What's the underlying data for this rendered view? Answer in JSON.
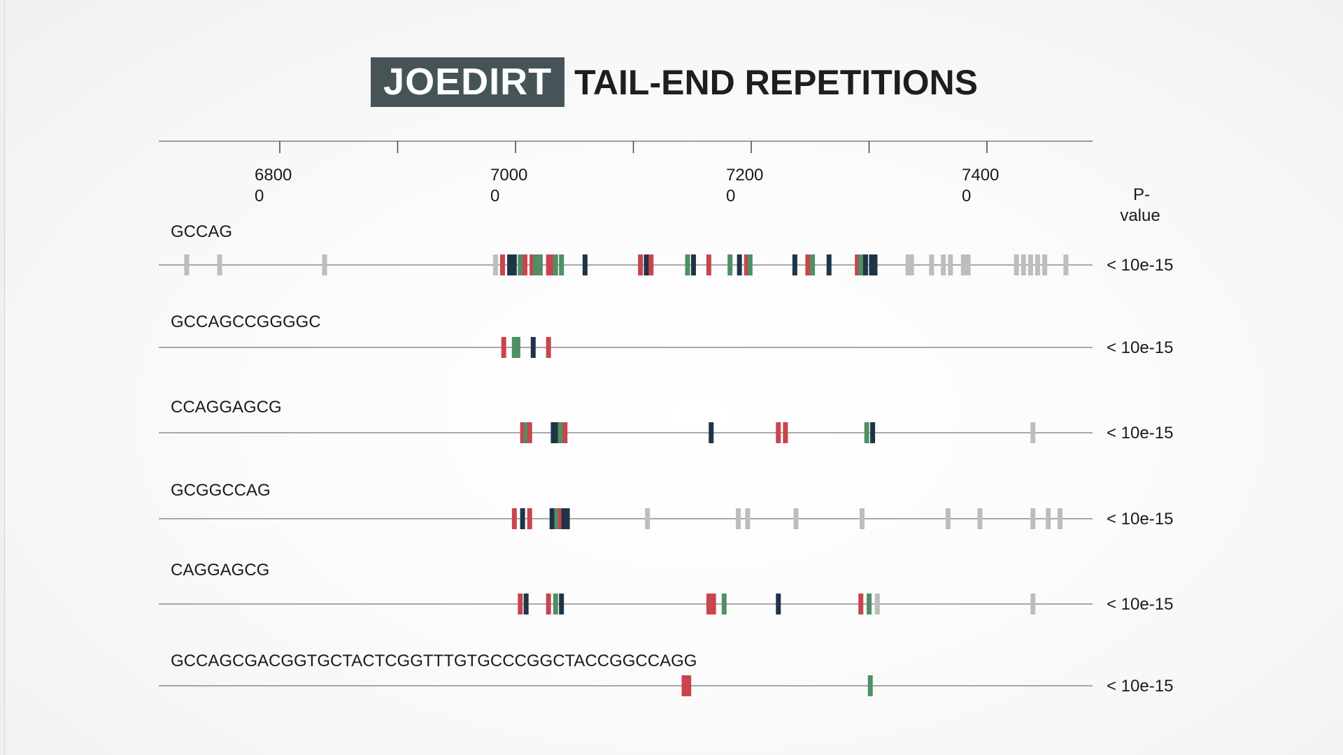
{
  "title": {
    "badge": "JOEDIRT",
    "rest": "TAIL-END REPETITIONS"
  },
  "colors": {
    "red": "#c8454e",
    "green": "#4f8f65",
    "navy": "#1f3447",
    "gray": "#bdbdbd",
    "axis": "#6a6a6a",
    "badge_bg": "#465458"
  },
  "chart_data": {
    "type": "strip",
    "title": "JOEDIRT TAIL-END REPETITIONS",
    "x_range": [
      6660,
      7450
    ],
    "x_ticks": [
      6800,
      6900,
      7000,
      7100,
      7200,
      7300,
      7400
    ],
    "x_tick_labels": [
      {
        "value": 6800,
        "line1": "6800",
        "line2": "0"
      },
      {
        "value": 7000,
        "line1": "7000",
        "line2": "0"
      },
      {
        "value": 7200,
        "line1": "7200",
        "line2": "0"
      },
      {
        "value": 7400,
        "line1": "7400",
        "line2": "0"
      }
    ],
    "pvalue_header": [
      "P-",
      "value"
    ],
    "tracks": [
      {
        "motif": "GCCAG",
        "pvalue": "< 10e-15",
        "marks": [
          [
            6721,
            "gray"
          ],
          [
            6749,
            "gray"
          ],
          [
            6838,
            "gray"
          ],
          [
            6983,
            "gray"
          ],
          [
            6989,
            "red"
          ],
          [
            6995,
            "navy"
          ],
          [
            6999,
            "navy"
          ],
          [
            7004,
            "green"
          ],
          [
            7008,
            "red"
          ],
          [
            7014,
            "red"
          ],
          [
            7017,
            "green"
          ],
          [
            7021,
            "green"
          ],
          [
            7028,
            "red"
          ],
          [
            7031,
            "red"
          ],
          [
            7034,
            "green"
          ],
          [
            7039,
            "green"
          ],
          [
            7059,
            "navy"
          ],
          [
            7106,
            "red"
          ],
          [
            7111,
            "navy"
          ],
          [
            7115,
            "red"
          ],
          [
            7146,
            "green"
          ],
          [
            7151,
            "navy"
          ],
          [
            7164,
            "red"
          ],
          [
            7182,
            "green"
          ],
          [
            7190,
            "navy"
          ],
          [
            7196,
            "red"
          ],
          [
            7199,
            "green"
          ],
          [
            7237,
            "navy"
          ],
          [
            7248,
            "red"
          ],
          [
            7252,
            "green"
          ],
          [
            7266,
            "navy"
          ],
          [
            7290,
            "red"
          ],
          [
            7293,
            "green"
          ],
          [
            7297,
            "navy"
          ],
          [
            7302,
            "navy"
          ],
          [
            7305,
            "navy"
          ],
          [
            7333,
            "gray"
          ],
          [
            7336,
            "gray"
          ],
          [
            7353,
            "gray"
          ],
          [
            7363,
            "gray"
          ],
          [
            7369,
            "gray"
          ],
          [
            7380,
            "gray"
          ],
          [
            7384,
            "gray"
          ],
          [
            7425,
            "gray"
          ],
          [
            7431,
            "gray"
          ],
          [
            7437,
            "gray"
          ],
          [
            7443,
            "gray"
          ],
          [
            7449,
            "gray"
          ],
          [
            7467,
            "gray"
          ]
        ]
      },
      {
        "motif": "GCCAGCCGGGGC",
        "pvalue": "< 10e-15",
        "marks": [
          [
            6990,
            "red"
          ],
          [
            6999,
            "green"
          ],
          [
            7002,
            "green"
          ],
          [
            7015,
            "navy"
          ],
          [
            7028,
            "red"
          ]
        ]
      },
      {
        "motif": "CCAGGAGCG",
        "pvalue": "< 10e-15",
        "marks": [
          [
            7006,
            "red"
          ],
          [
            7009,
            "green"
          ],
          [
            7012,
            "red"
          ],
          [
            7032,
            "navy"
          ],
          [
            7035,
            "navy"
          ],
          [
            7038,
            "green"
          ],
          [
            7042,
            "red"
          ],
          [
            7166,
            "navy"
          ],
          [
            7223,
            "red"
          ],
          [
            7229,
            "red"
          ],
          [
            7298,
            "green"
          ],
          [
            7303,
            "navy"
          ],
          [
            7439,
            "gray"
          ]
        ]
      },
      {
        "motif": "GCGGCCAG",
        "pvalue": "< 10e-15",
        "marks": [
          [
            6999,
            "red"
          ],
          [
            7006,
            "navy"
          ],
          [
            7012,
            "red"
          ],
          [
            7031,
            "navy"
          ],
          [
            7035,
            "green"
          ],
          [
            7038,
            "red"
          ],
          [
            7041,
            "navy"
          ],
          [
            7044,
            "navy"
          ],
          [
            7112,
            "gray"
          ],
          [
            7189,
            "gray"
          ],
          [
            7197,
            "gray"
          ],
          [
            7238,
            "gray"
          ],
          [
            7294,
            "gray"
          ],
          [
            7367,
            "gray"
          ],
          [
            7394,
            "gray"
          ],
          [
            7439,
            "gray"
          ],
          [
            7452,
            "gray"
          ],
          [
            7462,
            "gray"
          ]
        ]
      },
      {
        "motif": "CAGGAGCG",
        "pvalue": "< 10e-15",
        "marks": [
          [
            7004,
            "red"
          ],
          [
            7009,
            "navy"
          ],
          [
            7028,
            "red"
          ],
          [
            7034,
            "green"
          ],
          [
            7039,
            "navy"
          ],
          [
            7164,
            "red"
          ],
          [
            7168,
            "red"
          ],
          [
            7177,
            "green"
          ],
          [
            7223,
            "navy"
          ],
          [
            7293,
            "red"
          ],
          [
            7300,
            "green"
          ],
          [
            7307,
            "gray"
          ],
          [
            7439,
            "gray"
          ]
        ]
      },
      {
        "motif": "GCCAGCGACGGTGCTACTCGGTTTGTGCCCGGCTACCGGCCAGG",
        "pvalue": "< 10e-15",
        "marks": [
          [
            7143,
            "red"
          ],
          [
            7147,
            "red"
          ],
          [
            7301,
            "green"
          ]
        ]
      }
    ]
  }
}
